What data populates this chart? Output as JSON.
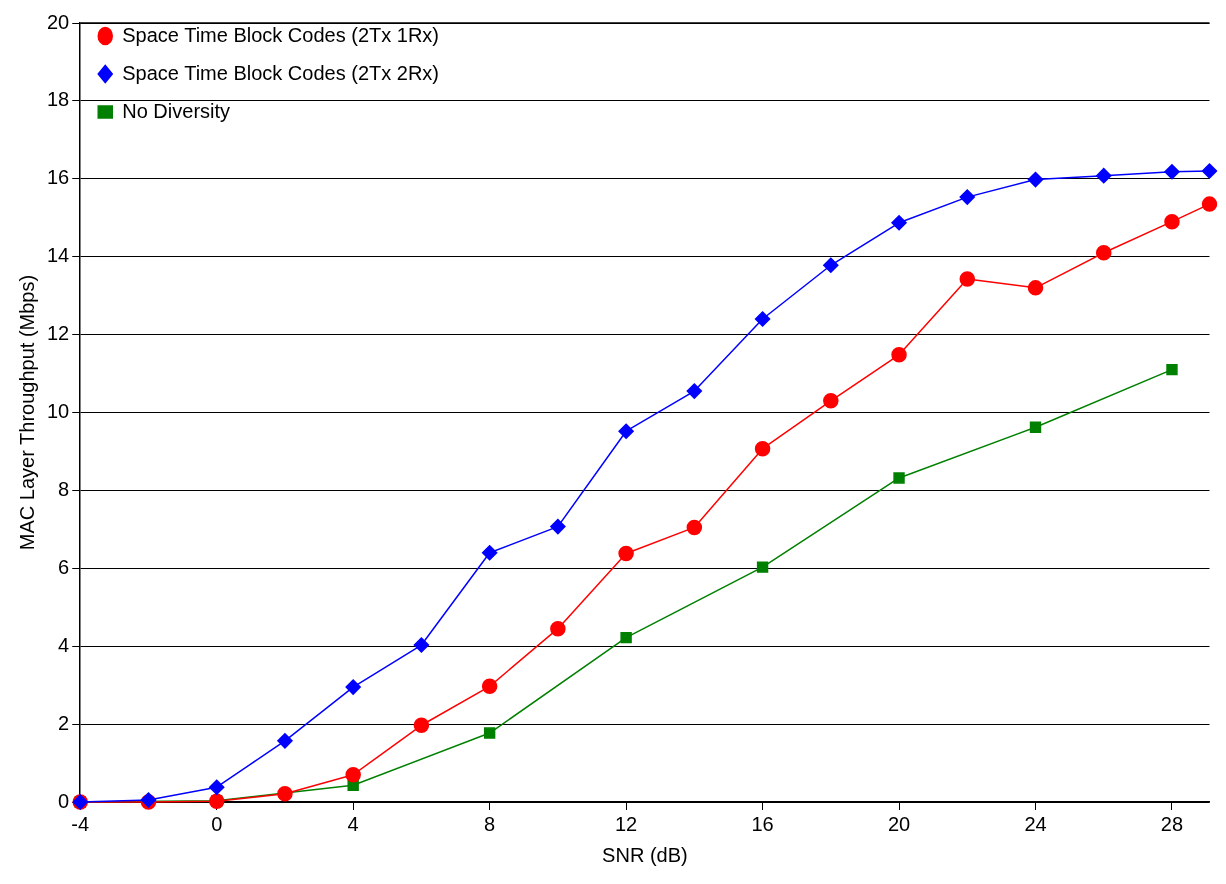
{
  "chart_data": {
    "type": "line",
    "xlabel": "SNR (dB)",
    "ylabel": "MAC Layer Throughput (Mbps)",
    "xlim": [
      -4,
      29.1
    ],
    "xticks": [
      -4,
      0,
      4,
      8,
      12,
      16,
      20,
      24,
      28
    ],
    "ylim": [
      0,
      20
    ],
    "yticks": [
      0,
      2,
      4,
      6,
      8,
      10,
      12,
      14,
      16,
      18,
      20
    ],
    "grid": "y",
    "legend": "top left",
    "line_style": "solid",
    "series": [
      {
        "name": "Space Time Block Codes (2Tx 1Rx)",
        "color": "#ff0000",
        "marker": "circle",
        "x": [
          -4,
          -2,
          0,
          2,
          4,
          6,
          8,
          10,
          12,
          14,
          16,
          18,
          20,
          22,
          24,
          26,
          28,
          29.1
        ],
        "values": [
          0,
          0,
          0.02,
          0.21,
          0.7,
          1.97,
          2.97,
          4.45,
          6.38,
          7.05,
          9.07,
          10.3,
          11.48,
          13.43,
          13.2,
          14.1,
          14.9,
          15.35
        ]
      },
      {
        "name": "Space Time Block Codes (2Tx 2Rx)",
        "color": "#0000ff",
        "marker": "diamond",
        "x": [
          -4,
          -2,
          0,
          2,
          4,
          6,
          8,
          10,
          12,
          14,
          16,
          18,
          20,
          22,
          24,
          26,
          28,
          29.1
        ],
        "values": [
          0,
          0.05,
          0.38,
          1.57,
          2.95,
          4.03,
          6.4,
          7.07,
          9.52,
          10.55,
          12.4,
          13.78,
          14.87,
          15.53,
          15.98,
          16.08,
          16.18,
          16.2
        ]
      },
      {
        "name": "No Diversity",
        "color": "#008000",
        "marker": "square",
        "x": [
          -4,
          0,
          2,
          4,
          8,
          12,
          16,
          20,
          24,
          28
        ],
        "values": [
          0,
          0.03,
          null,
          0.43,
          1.77,
          4.22,
          6.03,
          8.32,
          9.62,
          11.1
        ]
      }
    ]
  }
}
